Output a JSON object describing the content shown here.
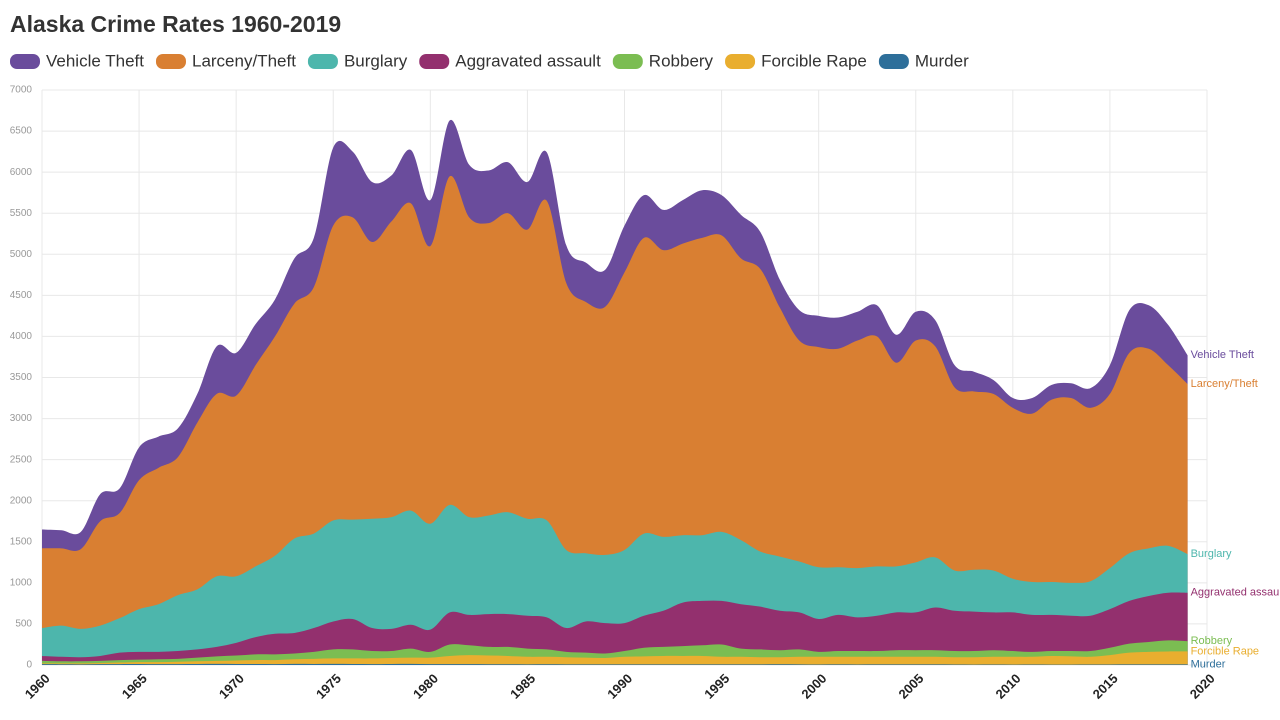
{
  "chart_data": {
    "type": "stacked-area",
    "title": "Alaska Crime Rates 1960-2019",
    "x": [
      1960,
      1961,
      1962,
      1963,
      1964,
      1965,
      1966,
      1967,
      1968,
      1969,
      1970,
      1971,
      1972,
      1973,
      1974,
      1975,
      1976,
      1977,
      1978,
      1979,
      1980,
      1981,
      1982,
      1983,
      1984,
      1985,
      1986,
      1987,
      1988,
      1989,
      1990,
      1991,
      1992,
      1993,
      1994,
      1995,
      1996,
      1997,
      1998,
      1999,
      2000,
      2001,
      2002,
      2003,
      2004,
      2005,
      2006,
      2007,
      2008,
      2009,
      2010,
      2011,
      2012,
      2013,
      2014,
      2015,
      2016,
      2017,
      2018,
      2019
    ],
    "xlim": [
      1960,
      2020
    ],
    "xticks": [
      1960,
      1965,
      1970,
      1975,
      1980,
      1985,
      1990,
      1995,
      2000,
      2005,
      2010,
      2015,
      2020
    ],
    "ylim": [
      0,
      7000
    ],
    "yticks": [
      0,
      500,
      1000,
      1500,
      2000,
      2500,
      3000,
      3500,
      4000,
      4500,
      5000,
      5500,
      6000,
      6500,
      7000
    ],
    "grid": true,
    "legend": "top-left",
    "series": [
      {
        "name": "Murder",
        "color": "#2e6f9a",
        "values": [
          10,
          9,
          8,
          10,
          11,
          12,
          10,
          11,
          12,
          13,
          12,
          12,
          11,
          13,
          12,
          13,
          12,
          11,
          12,
          13,
          11,
          10,
          10,
          9,
          9,
          8,
          9,
          8,
          8,
          7,
          7,
          8,
          8,
          8,
          7,
          8,
          8,
          8,
          9,
          8,
          6,
          7,
          6,
          7,
          7,
          7,
          7,
          6,
          5,
          6,
          5,
          6,
          5,
          5,
          6,
          6,
          7,
          8,
          7,
          7
        ]
      },
      {
        "name": "Forcible Rape",
        "color": "#e9ae2f",
        "values": [
          10,
          11,
          12,
          15,
          19,
          23,
          25,
          29,
          33,
          37,
          43,
          48,
          49,
          57,
          63,
          67,
          68,
          69,
          73,
          77,
          79,
          100,
          110,
          106,
          101,
          92,
          91,
          87,
          82,
          78,
          93,
          97,
          102,
          102,
          103,
          92,
          92,
          87,
          86,
          92,
          94,
          93,
          94,
          93,
          93,
          93,
          93,
          89,
          90,
          94,
          95,
          94,
          105,
          100,
          94,
          114,
          143,
          152,
          158,
          158
        ]
      },
      {
        "name": "Robbery",
        "color": "#7bbd52",
        "values": [
          30,
          25,
          25,
          25,
          30,
          30,
          35,
          35,
          45,
          55,
          60,
          70,
          70,
          70,
          85,
          110,
          110,
          90,
          85,
          110,
          70,
          140,
          120,
          105,
          110,
          100,
          90,
          65,
          60,
          55,
          70,
          105,
          110,
          120,
          130,
          150,
          100,
          95,
          85,
          90,
          60,
          70,
          70,
          70,
          80,
          80,
          80,
          75,
          75,
          80,
          70,
          60,
          60,
          65,
          70,
          90,
          110,
          120,
          135,
          125
        ]
      },
      {
        "name": "Aggravated assault",
        "color": "#93306e",
        "values": [
          60,
          55,
          50,
          60,
          90,
          95,
          90,
          95,
          100,
          115,
          155,
          210,
          250,
          250,
          290,
          340,
          370,
          280,
          270,
          290,
          270,
          390,
          370,
          400,
          400,
          400,
          390,
          290,
          380,
          370,
          340,
          390,
          440,
          530,
          540,
          530,
          540,
          520,
          480,
          450,
          400,
          440,
          410,
          430,
          460,
          460,
          520,
          490,
          480,
          460,
          470,
          450,
          440,
          430,
          430,
          470,
          520,
          560,
          580,
          590
        ]
      },
      {
        "name": "Burglary",
        "color": "#4db6ac",
        "values": [
          340,
          380,
          345,
          370,
          420,
          520,
          580,
          680,
          730,
          860,
          810,
          860,
          950,
          1150,
          1150,
          1230,
          1210,
          1330,
          1360,
          1390,
          1290,
          1310,
          1190,
          1200,
          1240,
          1180,
          1180,
          950,
          830,
          830,
          890,
          1000,
          900,
          820,
          800,
          840,
          780,
          670,
          660,
          620,
          630,
          580,
          600,
          600,
          560,
          610,
          610,
          490,
          510,
          510,
          410,
          400,
          400,
          400,
          420,
          500,
          580,
          580,
          570,
          470
        ]
      },
      {
        "name": "Larceny/Theft",
        "color": "#d97f32",
        "values": [
          970,
          940,
          970,
          1270,
          1280,
          1570,
          1660,
          1680,
          2030,
          2220,
          2200,
          2450,
          2670,
          2860,
          3000,
          3590,
          3680,
          3370,
          3600,
          3740,
          3380,
          4000,
          3650,
          3560,
          3640,
          3520,
          3890,
          3250,
          3060,
          3020,
          3380,
          3600,
          3490,
          3550,
          3620,
          3610,
          3430,
          3440,
          3030,
          2690,
          2680,
          2660,
          2770,
          2800,
          2480,
          2700,
          2570,
          2230,
          2170,
          2150,
          2080,
          2050,
          2220,
          2250,
          2110,
          2120,
          2440,
          2430,
          2200,
          2070
        ]
      },
      {
        "name": "Vehicle Theft",
        "color": "#6a4c9c",
        "values": [
          230,
          220,
          210,
          330,
          300,
          400,
          380,
          350,
          350,
          580,
          520,
          500,
          450,
          550,
          600,
          950,
          800,
          730,
          560,
          650,
          560,
          680,
          640,
          640,
          620,
          580,
          590,
          460,
          480,
          450,
          570,
          520,
          490,
          530,
          580,
          490,
          530,
          450,
          340,
          370,
          380,
          380,
          350,
          380,
          340,
          350,
          320,
          270,
          240,
          170,
          120,
          190,
          180,
          180,
          240,
          350,
          520,
          530,
          490,
          350
        ]
      }
    ]
  }
}
